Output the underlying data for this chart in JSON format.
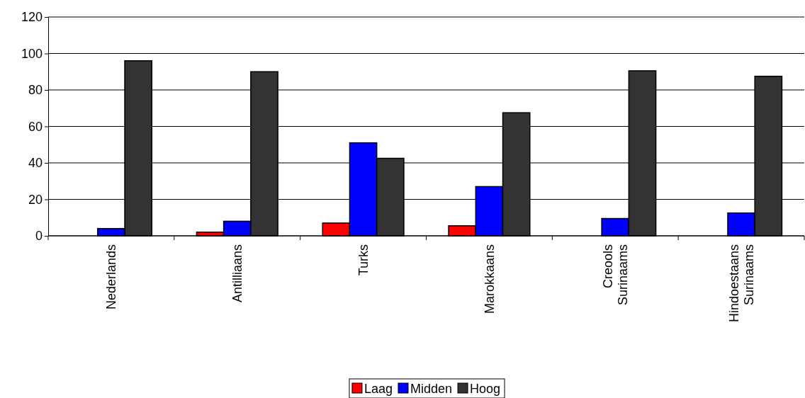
{
  "chart_data": {
    "type": "bar",
    "categories": [
      "Nederlands",
      "Antilliaans",
      "Turks",
      "Marokkaans",
      "Creools Surinaams",
      "Hindoestaans Surinaams"
    ],
    "series": [
      {
        "name": "Laag",
        "color": "#ff0000",
        "values": [
          0,
          2,
          7,
          5.5,
          0,
          0
        ]
      },
      {
        "name": "Midden",
        "color": "#0000ff",
        "values": [
          4,
          8,
          51,
          27,
          9.5,
          12.5
        ]
      },
      {
        "name": "Hoog",
        "color": "#333333",
        "values": [
          96,
          90,
          42.5,
          67.5,
          90.5,
          87.5
        ]
      }
    ],
    "ylim": [
      0,
      120
    ],
    "yticks": [
      0,
      20,
      40,
      60,
      80,
      100,
      120
    ],
    "grid": "y",
    "legend": "bottom"
  }
}
